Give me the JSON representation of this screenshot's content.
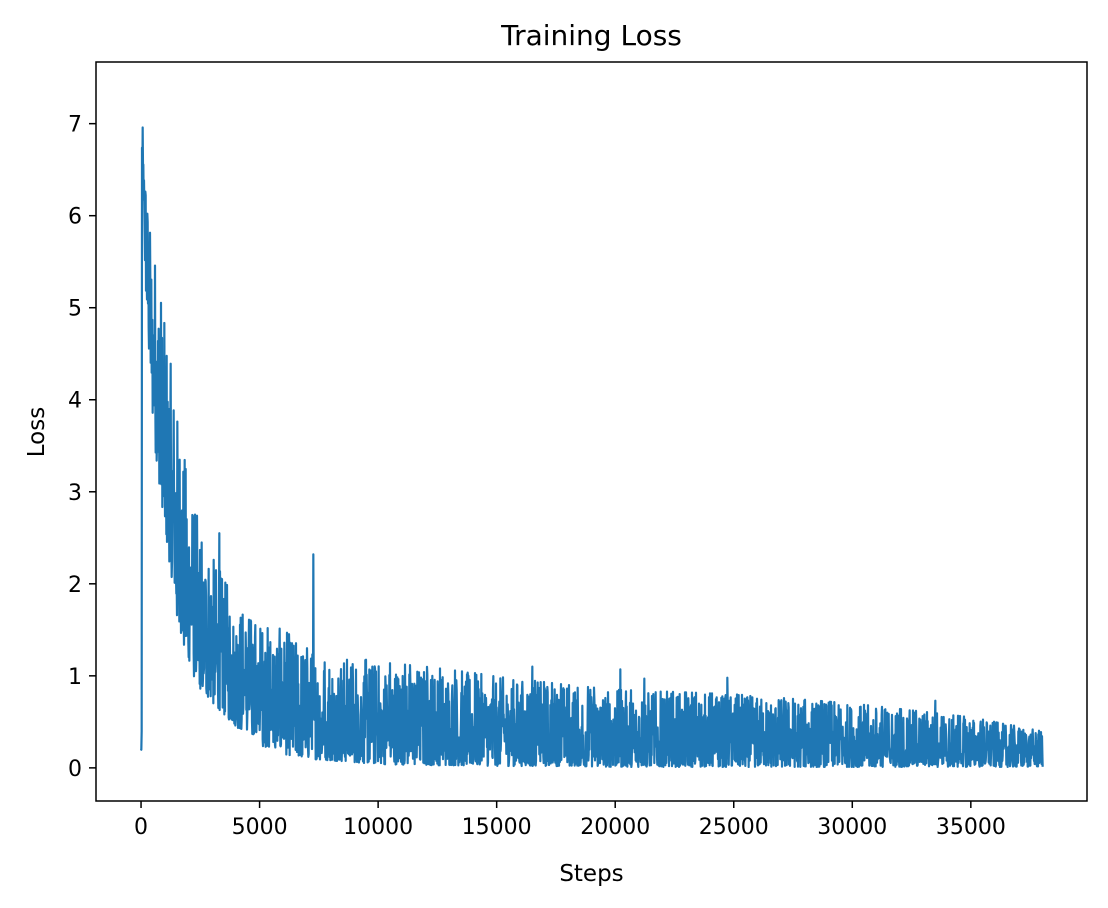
{
  "chart_data": {
    "type": "line",
    "title": "Training Loss",
    "xlabel": "Steps",
    "ylabel": "Loss",
    "xlim": [
      -1900,
      39900
    ],
    "ylim": [
      -0.36,
      7.67
    ],
    "xticks": [
      0,
      5000,
      10000,
      15000,
      20000,
      25000,
      30000,
      35000
    ],
    "xtick_labels": [
      "0",
      "5000",
      "10000",
      "15000",
      "20000",
      "25000",
      "30000",
      "35000"
    ],
    "yticks": [
      0,
      1,
      2,
      3,
      4,
      5,
      6,
      7
    ],
    "ytick_labels": [
      "0",
      "1",
      "2",
      "3",
      "4",
      "5",
      "6",
      "7"
    ],
    "grid": false,
    "legend": "none",
    "series": [
      {
        "color": "#1f77b4",
        "x_start": 0,
        "x_end": 38000,
        "envelope_x": [
          0,
          200,
          500,
          1000,
          1500,
          2000,
          2500,
          3000,
          4000,
          5000,
          6000,
          7000,
          8000,
          10000,
          12000,
          15000,
          18000,
          20000,
          25000,
          30000,
          35000,
          38000
        ],
        "envelope_upper": [
          7.3,
          6.3,
          5.6,
          4.8,
          3.9,
          3.1,
          2.6,
          2.3,
          1.8,
          1.6,
          1.5,
          1.3,
          1.25,
          1.15,
          1.1,
          1.0,
          0.9,
          0.85,
          0.8,
          0.7,
          0.55,
          0.4
        ],
        "envelope_lower": [
          6.6,
          5.2,
          3.6,
          2.6,
          1.6,
          1.1,
          0.85,
          0.7,
          0.45,
          0.25,
          0.15,
          0.1,
          0.08,
          0.04,
          0.03,
          0.02,
          0.02,
          0.01,
          0.01,
          0.01,
          0.01,
          0.01
        ],
        "spikes": [
          {
            "x": 7250,
            "y": 2.32
          },
          {
            "x": 3300,
            "y": 2.55
          },
          {
            "x": 16500,
            "y": 1.1
          },
          {
            "x": 20200,
            "y": 1.07
          },
          {
            "x": 21200,
            "y": 0.97
          },
          {
            "x": 24700,
            "y": 0.98
          },
          {
            "x": 33500,
            "y": 0.73
          }
        ]
      }
    ]
  }
}
